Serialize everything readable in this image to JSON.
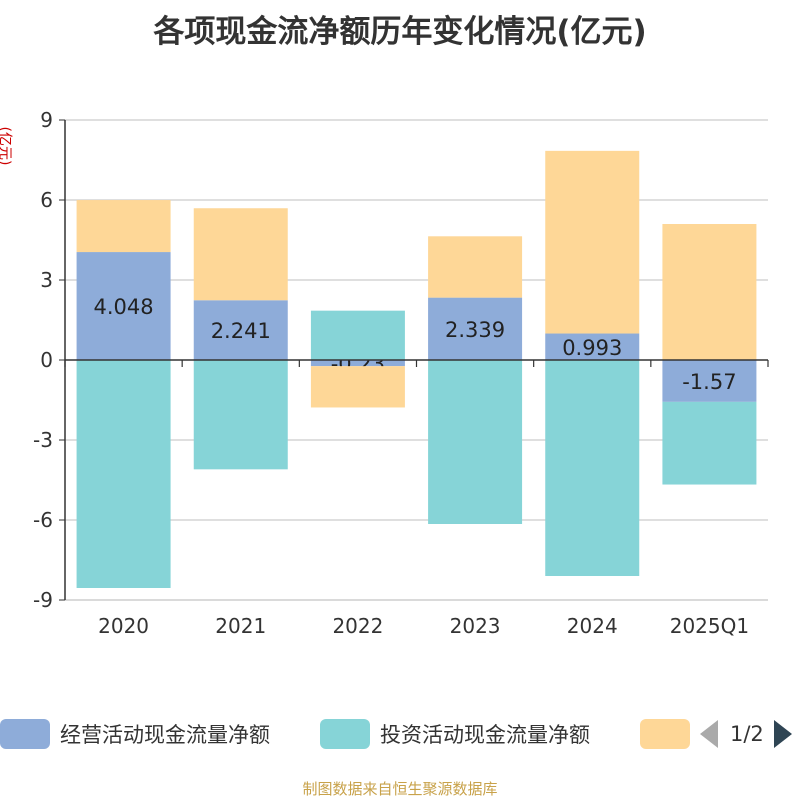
{
  "title": "各项现金流净额历年变化情况(亿元)",
  "source": "制图数据来自恒生聚源数据库",
  "legend_pager": {
    "page": "1/2"
  },
  "colors": {
    "operating": "#8eacd9",
    "investing": "#86d4d7",
    "financing": "#fed797",
    "axis": "#333333",
    "grid": "#cccccc"
  },
  "chart_data": {
    "type": "bar",
    "stacked": true,
    "ylabel": "(亿元)",
    "ylim": [
      -9,
      9
    ],
    "yticks": [
      9,
      6,
      3,
      0,
      -3,
      -6,
      -9
    ],
    "categories": [
      "2020",
      "2021",
      "2022",
      "2023",
      "2024",
      "2025Q1"
    ],
    "series": [
      {
        "name": "经营活动现金流量净额",
        "color": "#8eacd9",
        "values": [
          4.048,
          2.241,
          -0.23,
          2.339,
          0.993,
          -1.57
        ],
        "labels": [
          "4.048",
          "2.241",
          "-0.23",
          "2.339",
          "0.993",
          "-1.57"
        ]
      },
      {
        "name": "投资活动现金流量净额",
        "color": "#86d4d7",
        "values": [
          -8.55,
          -4.1,
          1.85,
          -6.15,
          -8.1,
          -3.1
        ]
      },
      {
        "name": "",
        "color": "#fed797",
        "values": [
          1.95,
          3.45,
          -1.55,
          2.3,
          6.85,
          5.1
        ]
      }
    ],
    "grid": true,
    "legend_position": "bottom"
  }
}
